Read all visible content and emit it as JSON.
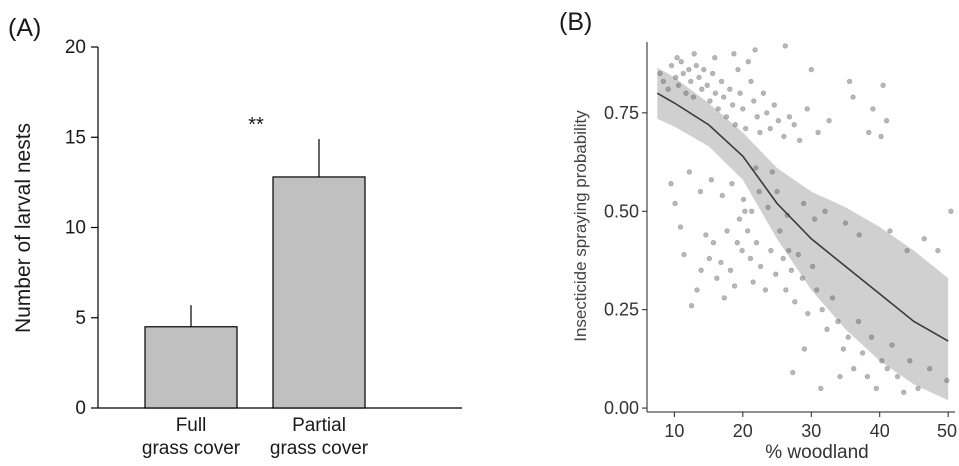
{
  "colors": {
    "bar_fill": "#c0c0c0",
    "point": "#606060",
    "ribbon": "#d0d0d0",
    "line": "#3a3a3a"
  },
  "panel_a": {
    "label": "(A)",
    "annotation": "**"
  },
  "panel_b": {
    "label": "(B)"
  },
  "chart_data": [
    {
      "type": "bar",
      "categories": [
        [
          "Full",
          "grass cover"
        ],
        [
          "Partial",
          "grass cover"
        ]
      ],
      "values": [
        4.5,
        12.8
      ],
      "error_upper": [
        5.7,
        14.9
      ],
      "ylabel": "Number of larval nests",
      "xlabel": "",
      "ylim": [
        0,
        20
      ],
      "yticks": [
        0,
        5,
        10,
        15,
        20
      ],
      "annotations": [
        "**"
      ],
      "grid": false
    },
    {
      "type": "scatter",
      "xlabel": "% woodland",
      "ylabel": "Insecticide spraying probability",
      "xlim": [
        6,
        51
      ],
      "ylim": [
        -0.01,
        0.93
      ],
      "xticks": [
        "10",
        "20",
        "30",
        "40",
        "50"
      ],
      "yticks": [
        "0.00",
        "0.25",
        "0.50",
        "0.75"
      ],
      "grid": false,
      "fit": {
        "x": [
          7.5,
          10,
          15,
          20,
          25,
          30,
          35,
          40,
          45,
          50
        ],
        "y": [
          0.8,
          0.775,
          0.72,
          0.64,
          0.52,
          0.43,
          0.36,
          0.29,
          0.22,
          0.17
        ],
        "lower": [
          0.735,
          0.715,
          0.665,
          0.58,
          0.43,
          0.3,
          0.2,
          0.12,
          0.06,
          0.02
        ],
        "upper": [
          0.865,
          0.84,
          0.775,
          0.7,
          0.61,
          0.55,
          0.51,
          0.46,
          0.4,
          0.33
        ]
      },
      "points": [
        [
          7.9,
          0.85
        ],
        [
          8.4,
          0.83
        ],
        [
          9.1,
          0.81
        ],
        [
          9.6,
          0.87
        ],
        [
          10.2,
          0.84
        ],
        [
          10.6,
          0.82
        ],
        [
          11.0,
          0.88
        ],
        [
          11.3,
          0.85
        ],
        [
          11.7,
          0.8
        ],
        [
          12.1,
          0.86
        ],
        [
          12.4,
          0.83
        ],
        [
          12.8,
          0.79
        ],
        [
          13.2,
          0.87
        ],
        [
          13.6,
          0.84
        ],
        [
          14.0,
          0.81
        ],
        [
          14.3,
          0.86
        ],
        [
          14.8,
          0.82
        ],
        [
          15.2,
          0.78
        ],
        [
          15.6,
          0.85
        ],
        [
          16.0,
          0.8
        ],
        [
          16.4,
          0.76
        ],
        [
          16.9,
          0.83
        ],
        [
          17.2,
          0.79
        ],
        [
          17.6,
          0.74
        ],
        [
          18.1,
          0.81
        ],
        [
          18.5,
          0.77
        ],
        [
          18.9,
          0.72
        ],
        [
          19.3,
          0.86
        ],
        [
          19.6,
          0.8
        ],
        [
          20.0,
          0.76
        ],
        [
          20.4,
          0.71
        ],
        [
          20.8,
          0.88
        ],
        [
          21.2,
          0.83
        ],
        [
          21.6,
          0.78
        ],
        [
          22.1,
          0.74
        ],
        [
          22.5,
          0.7
        ],
        [
          23.0,
          0.8
        ],
        [
          23.5,
          0.75
        ],
        [
          24.0,
          0.71
        ],
        [
          24.6,
          0.77
        ],
        [
          25.2,
          0.73
        ],
        [
          26.0,
          0.69
        ],
        [
          26.8,
          0.74
        ],
        [
          27.5,
          0.72
        ],
        [
          28.3,
          0.68
        ],
        [
          29.4,
          0.76
        ],
        [
          31.0,
          0.7
        ],
        [
          32.6,
          0.73
        ],
        [
          35.6,
          0.83
        ],
        [
          36.1,
          0.79
        ],
        [
          38.4,
          0.7
        ],
        [
          39.0,
          0.76
        ],
        [
          40.2,
          0.69
        ],
        [
          41.0,
          0.73
        ],
        [
          10.9,
          0.46
        ],
        [
          11.4,
          0.39
        ],
        [
          12.5,
          0.26
        ],
        [
          13.3,
          0.3
        ],
        [
          13.9,
          0.35
        ],
        [
          14.6,
          0.44
        ],
        [
          15.1,
          0.38
        ],
        [
          15.7,
          0.42
        ],
        [
          16.2,
          0.33
        ],
        [
          16.8,
          0.37
        ],
        [
          17.3,
          0.28
        ],
        [
          17.7,
          0.45
        ],
        [
          18.2,
          0.35
        ],
        [
          18.8,
          0.31
        ],
        [
          19.2,
          0.42
        ],
        [
          19.5,
          0.48
        ],
        [
          19.9,
          0.4
        ],
        [
          20.3,
          0.5
        ],
        [
          20.7,
          0.45
        ],
        [
          21.1,
          0.38
        ],
        [
          21.5,
          0.32
        ],
        [
          22.0,
          0.42
        ],
        [
          22.6,
          0.36
        ],
        [
          23.3,
          0.3
        ],
        [
          24.1,
          0.4
        ],
        [
          24.8,
          0.34
        ],
        [
          25.4,
          0.45
        ],
        [
          25.9,
          0.38
        ],
        [
          26.3,
          0.3
        ],
        [
          26.7,
          0.4
        ],
        [
          27.1,
          0.35
        ],
        [
          27.6,
          0.27
        ],
        [
          28.1,
          0.39
        ],
        [
          28.7,
          0.33
        ],
        [
          29.5,
          0.24
        ],
        [
          30.2,
          0.36
        ],
        [
          30.8,
          0.3
        ],
        [
          31.6,
          0.25
        ],
        [
          32.3,
          0.2
        ],
        [
          33.1,
          0.28
        ],
        [
          33.9,
          0.22
        ],
        [
          34.7,
          0.15
        ],
        [
          35.4,
          0.18
        ],
        [
          36.2,
          0.1
        ],
        [
          36.9,
          0.22
        ],
        [
          37.5,
          0.14
        ],
        [
          38.2,
          0.08
        ],
        [
          38.8,
          0.18
        ],
        [
          39.5,
          0.05
        ],
        [
          40.3,
          0.12
        ],
        [
          41.1,
          0.1
        ],
        [
          41.8,
          0.16
        ],
        [
          42.6,
          0.08
        ],
        [
          43.5,
          0.04
        ],
        [
          44.4,
          0.12
        ],
        [
          45.6,
          0.05
        ],
        [
          47.3,
          0.1
        ],
        [
          49.8,
          0.07
        ],
        [
          20.1,
          0.53
        ],
        [
          21.3,
          0.5
        ],
        [
          22.4,
          0.55
        ],
        [
          23.7,
          0.51
        ],
        [
          25.0,
          0.55
        ],
        [
          26.5,
          0.49
        ],
        [
          28.9,
          0.52
        ],
        [
          30.5,
          0.48
        ],
        [
          32.0,
          0.5
        ],
        [
          35.0,
          0.47
        ],
        [
          37.0,
          0.44
        ],
        [
          41.5,
          0.45
        ],
        [
          44.0,
          0.4
        ],
        [
          46.5,
          0.43
        ],
        [
          48.5,
          0.4
        ],
        [
          50.4,
          0.5
        ],
        [
          27.3,
          0.09
        ],
        [
          29.0,
          0.15
        ],
        [
          31.4,
          0.05
        ],
        [
          34.2,
          0.08
        ],
        [
          9.5,
          0.57
        ],
        [
          10.1,
          0.52
        ],
        [
          12.2,
          0.6
        ],
        [
          13.8,
          0.55
        ],
        [
          15.4,
          0.58
        ],
        [
          17.0,
          0.54
        ],
        [
          18.4,
          0.57
        ],
        [
          21.9,
          0.61
        ],
        [
          24.3,
          0.6
        ],
        [
          10.4,
          0.89
        ],
        [
          12.9,
          0.9
        ],
        [
          15.9,
          0.89
        ],
        [
          18.7,
          0.9
        ],
        [
          21.8,
          0.91
        ],
        [
          26.2,
          0.92
        ],
        [
          30.0,
          0.86
        ],
        [
          40.5,
          0.82
        ]
      ]
    }
  ]
}
